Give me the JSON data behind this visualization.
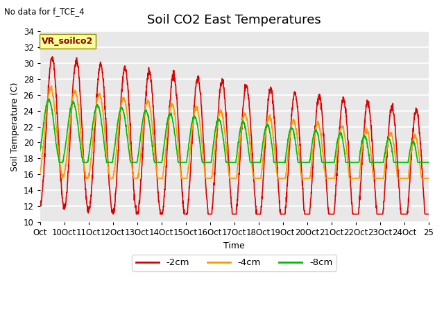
{
  "title": "Soil CO2 East Temperatures",
  "no_data_text": "No data for f_TCE_4",
  "vr_label": "VR_soilco2",
  "xlabel": "Time",
  "ylabel": "Soil Temperature (C)",
  "ylim": [
    10,
    34
  ],
  "yticks": [
    10,
    12,
    14,
    16,
    18,
    20,
    22,
    24,
    26,
    28,
    30,
    32,
    34
  ],
  "xtick_labels": [
    "Oct",
    "10Oct",
    "11Oct",
    "12Oct",
    "13Oct",
    "14Oct",
    "15Oct",
    "16Oct",
    "17Oct",
    "18Oct",
    "19Oct",
    "20Oct",
    "21Oct",
    "22Oct",
    "23Oct",
    "24Oct",
    "25"
  ],
  "line_colors": {
    "2cm": "#DD0000",
    "4cm": "#FF9900",
    "8cm": "#00BB00"
  },
  "legend_labels": [
    "-2cm",
    "-4cm",
    "-8cm"
  ],
  "plot_bg_color": "#E8E8E8",
  "fig_bg_color": "#FFFFFF",
  "grid_color": "#FFFFFF",
  "title_fontsize": 13,
  "label_fontsize": 9,
  "tick_fontsize": 8.5,
  "linewidth": 1.2
}
